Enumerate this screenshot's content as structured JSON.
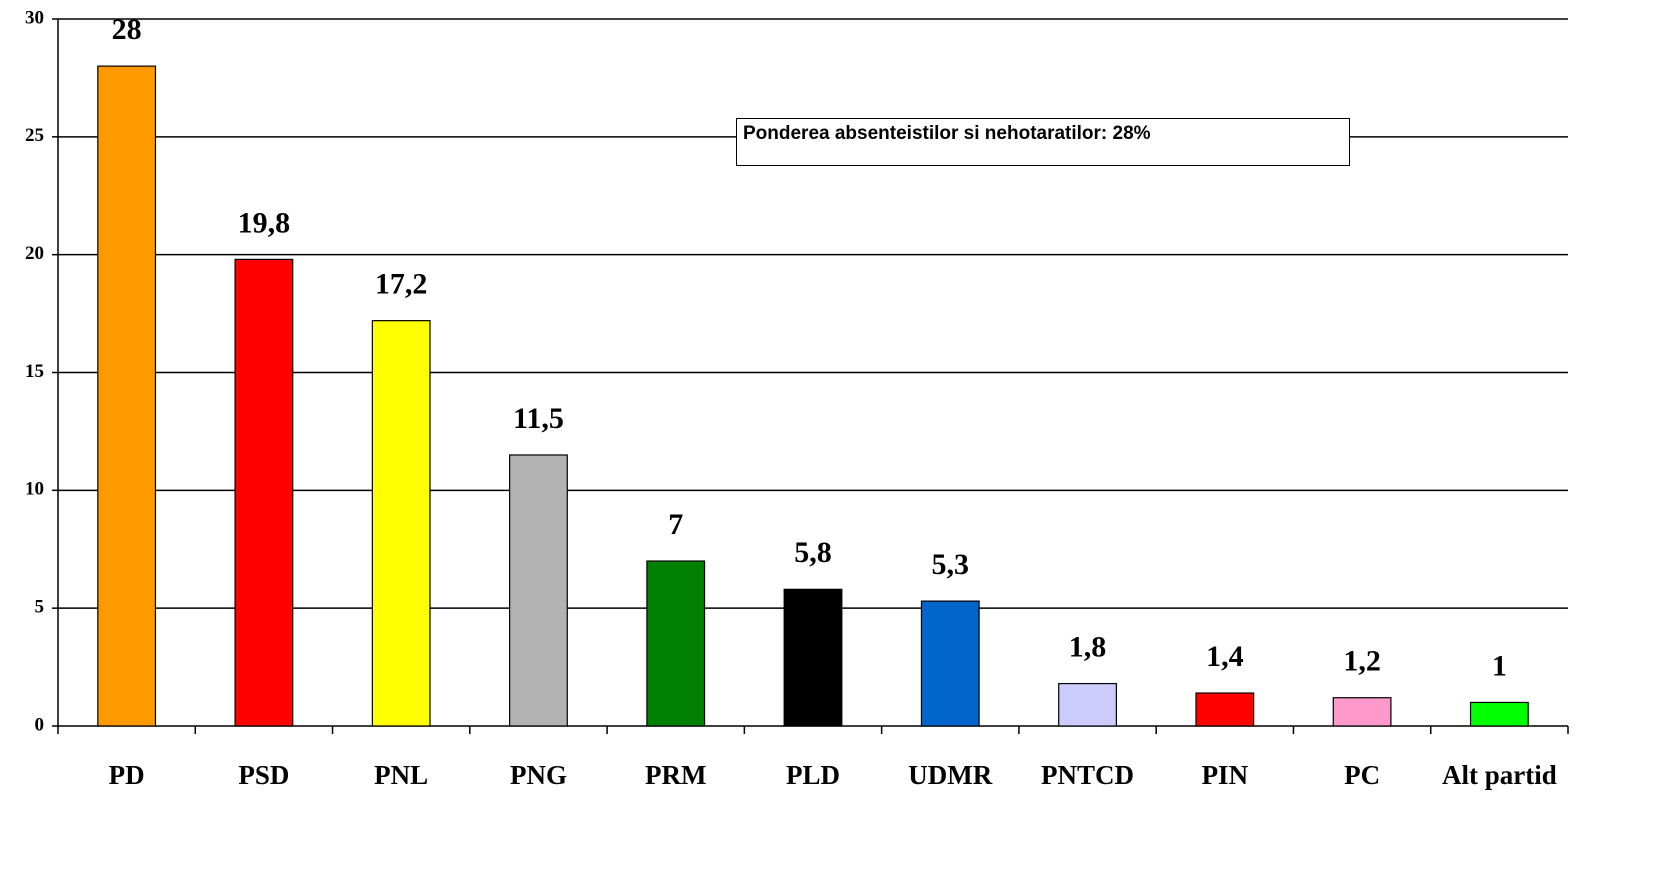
{
  "chart_data": {
    "type": "bar",
    "categories": [
      "PD",
      "PSD",
      "PNL",
      "PNG",
      "PRM",
      "PLD",
      "UDMR",
      "PNTCD",
      "PIN",
      "PC",
      "Alt partid"
    ],
    "values": [
      28,
      19.8,
      17.2,
      11.5,
      7,
      5.8,
      5.3,
      1.8,
      1.4,
      1.2,
      1
    ],
    "value_labels": [
      "28",
      "19,8",
      "17,2",
      "11,5",
      "7",
      "5,8",
      "5,3",
      "1,8",
      "1,4",
      "1,2",
      "1"
    ],
    "colors": [
      "#ff9900",
      "#ff0000",
      "#ffff00",
      "#b2b2b2",
      "#008000",
      "#000000",
      "#0066cc",
      "#ccccff",
      "#ff0000",
      "#ff99cc",
      "#00ff00"
    ],
    "ylim": [
      0,
      30
    ],
    "yticks": [
      0,
      5,
      10,
      15,
      20,
      25,
      30
    ],
    "grid": true,
    "annotation": "Ponderea absenteistilor si nehotaratilor: 28%"
  }
}
